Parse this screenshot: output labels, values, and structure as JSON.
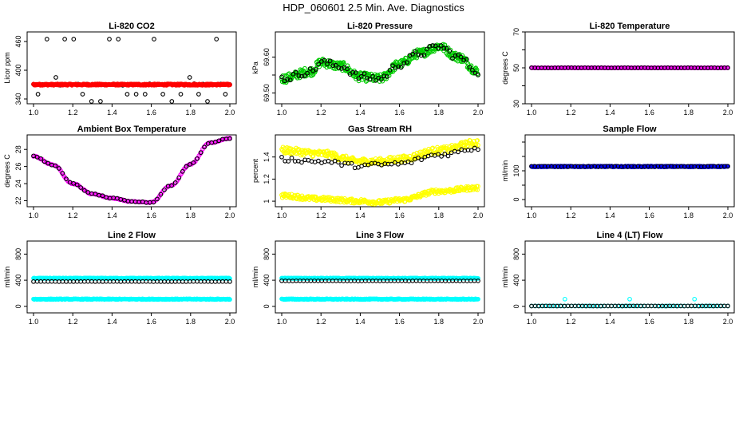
{
  "figure": {
    "title": "HDP_060601  2.5 Min. Ave. Diagnostics"
  },
  "chart_data": [
    {
      "type": "scatter",
      "title": "Li-820 CO2",
      "xlabel": "",
      "ylabel": "Licor ppm",
      "xlim": [
        1.0,
        2.0
      ],
      "ylim": [
        330,
        480
      ],
      "xticks": [
        "1.0",
        "1.2",
        "1.4",
        "1.6",
        "1.8",
        "2.0"
      ],
      "yticks": [
        340,
        400,
        460
      ],
      "series": [
        {
          "color": "#000000",
          "marker": "open-circle",
          "pattern": {
            "kind": "spikes",
            "base": 370,
            "n": 45,
            "noise": 2,
            "spike_values": [
              335,
              350,
              385,
              465
            ],
            "spike_every": 1
          }
        },
        {
          "color": "#ff0000",
          "marker": "open-circle",
          "pattern": {
            "kind": "band",
            "values_at": [
              [
                1.0,
                370
              ],
              [
                2.0,
                370
              ]
            ],
            "n": 400,
            "noise": 1.5
          }
        }
      ]
    },
    {
      "type": "scatter",
      "title": "Li-820 Pressure",
      "xlabel": "",
      "ylabel": "kPa",
      "xlim": [
        1.0,
        2.0
      ],
      "ylim": [
        69.47,
        69.67
      ],
      "xticks": [
        "1.0",
        "1.2",
        "1.4",
        "1.6",
        "1.8",
        "2.0"
      ],
      "yticks": [
        69.5,
        69.55,
        69.6
      ],
      "ytick_labels": [
        "69.50",
        "",
        "69.60"
      ],
      "series": [
        {
          "color": "#00cc00",
          "marker": "open-circle",
          "pattern": {
            "kind": "band",
            "values_at": [
              [
                1.0,
                69.54
              ],
              [
                1.15,
                69.56
              ],
              [
                1.2,
                69.585
              ],
              [
                1.3,
                69.575
              ],
              [
                1.4,
                69.545
              ],
              [
                1.5,
                69.54
              ],
              [
                1.6,
                69.58
              ],
              [
                1.7,
                69.61
              ],
              [
                1.8,
                69.63
              ],
              [
                1.9,
                69.6
              ],
              [
                2.0,
                69.56
              ]
            ],
            "n": 350,
            "noise": 0.012
          }
        },
        {
          "color": "#000000",
          "marker": "open-circle",
          "pattern": {
            "kind": "band",
            "values_at": [
              [
                1.0,
                69.54
              ],
              [
                1.15,
                69.56
              ],
              [
                1.2,
                69.585
              ],
              [
                1.3,
                69.575
              ],
              [
                1.4,
                69.545
              ],
              [
                1.5,
                69.54
              ],
              [
                1.6,
                69.58
              ],
              [
                1.7,
                69.61
              ],
              [
                1.8,
                69.63
              ],
              [
                1.9,
                69.6
              ],
              [
                2.0,
                69.56
              ]
            ],
            "n": 70,
            "noise": 0.01
          }
        }
      ]
    },
    {
      "type": "scatter",
      "title": "Li-820 Temperature",
      "xlabel": "",
      "ylabel": "degrees C",
      "xlim": [
        1.0,
        2.0
      ],
      "ylim": [
        30,
        70
      ],
      "xticks": [
        "1.0",
        "1.2",
        "1.4",
        "1.6",
        "1.8",
        "2.0"
      ],
      "yticks": [
        30,
        40,
        50,
        60,
        70
      ],
      "ytick_labels": [
        "30",
        "",
        "50",
        "",
        "70"
      ],
      "series": [
        {
          "color": "#ff00ff",
          "marker": "open-circle",
          "pattern": {
            "kind": "band",
            "values_at": [
              [
                1.0,
                50
              ],
              [
                2.0,
                50
              ]
            ],
            "n": 200,
            "noise": 0.05
          }
        },
        {
          "color": "#000000",
          "marker": "open-circle",
          "pattern": {
            "kind": "band",
            "values_at": [
              [
                1.0,
                50
              ],
              [
                2.0,
                50
              ]
            ],
            "n": 60,
            "noise": 0.05
          }
        }
      ]
    },
    {
      "type": "scatter",
      "title": "Ambient Box Temperature",
      "xlabel": "",
      "ylabel": "degrees C",
      "xlim": [
        1.0,
        2.0
      ],
      "ylim": [
        21.3,
        29.7
      ],
      "xticks": [
        "1.0",
        "1.2",
        "1.4",
        "1.6",
        "1.8",
        "2.0"
      ],
      "yticks": [
        22,
        24,
        26,
        28
      ],
      "series": [
        {
          "color": "#ff00ff",
          "marker": "open-circle",
          "pattern": {
            "kind": "band",
            "values_at": [
              [
                1.0,
                27.2
              ],
              [
                1.1,
                26.2
              ],
              [
                1.2,
                24.0
              ],
              [
                1.3,
                22.8
              ],
              [
                1.4,
                22.3
              ],
              [
                1.5,
                21.9
              ],
              [
                1.6,
                21.8
              ],
              [
                1.7,
                23.8
              ],
              [
                1.8,
                26.3
              ],
              [
                1.9,
                28.8
              ],
              [
                2.0,
                29.3
              ]
            ],
            "n": 160,
            "noise": 0.05
          }
        },
        {
          "color": "#000000",
          "marker": "open-circle",
          "pattern": {
            "kind": "band",
            "values_at": [
              [
                1.0,
                27.2
              ],
              [
                1.1,
                26.2
              ],
              [
                1.2,
                24.0
              ],
              [
                1.3,
                22.8
              ],
              [
                1.4,
                22.3
              ],
              [
                1.5,
                21.9
              ],
              [
                1.6,
                21.8
              ],
              [
                1.7,
                23.8
              ],
              [
                1.8,
                26.3
              ],
              [
                1.9,
                28.8
              ],
              [
                2.0,
                29.3
              ]
            ],
            "n": 55,
            "noise": 0.05
          }
        }
      ]
    },
    {
      "type": "scatter",
      "title": "Gas Stream RH",
      "xlabel": "",
      "ylabel": "percent",
      "xlim": [
        1.0,
        2.0
      ],
      "ylim": [
        0.95,
        1.6
      ],
      "xticks": [
        "1.0",
        "1.2",
        "1.4",
        "1.6",
        "1.8",
        "2.0"
      ],
      "yticks": [
        1.0,
        1.2,
        1.4
      ],
      "series": [
        {
          "color": "#ffff00",
          "marker": "open-circle",
          "pattern": {
            "kind": "band",
            "values_at": [
              [
                1.0,
                1.46
              ],
              [
                1.2,
                1.43
              ],
              [
                1.4,
                1.36
              ],
              [
                1.5,
                1.36
              ],
              [
                1.6,
                1.38
              ],
              [
                1.8,
                1.46
              ],
              [
                2.0,
                1.53
              ]
            ],
            "n": 300,
            "noise": 0.03
          }
        },
        {
          "color": "#ffff00",
          "marker": "open-circle",
          "pattern": {
            "kind": "band",
            "values_at": [
              [
                1.0,
                1.05
              ],
              [
                1.2,
                1.02
              ],
              [
                1.4,
                1.0
              ],
              [
                1.5,
                0.99
              ],
              [
                1.6,
                1.01
              ],
              [
                1.8,
                1.09
              ],
              [
                2.0,
                1.12
              ]
            ],
            "n": 300,
            "noise": 0.02
          }
        },
        {
          "color": "#000000",
          "marker": "open-circle",
          "pattern": {
            "kind": "band",
            "values_at": [
              [
                1.0,
                1.38
              ],
              [
                1.2,
                1.36
              ],
              [
                1.4,
                1.32
              ],
              [
                1.5,
                1.33
              ],
              [
                1.6,
                1.34
              ],
              [
                1.8,
                1.42
              ],
              [
                2.0,
                1.48
              ]
            ],
            "n": 60,
            "noise": 0.02
          }
        }
      ]
    },
    {
      "type": "scatter",
      "title": "Sample Flow",
      "xlabel": "",
      "ylabel": "ml/min",
      "xlim": [
        1.0,
        2.0
      ],
      "ylim": [
        -25,
        225
      ],
      "xticks": [
        "1.0",
        "1.2",
        "1.4",
        "1.6",
        "1.8",
        "2.0"
      ],
      "yticks": [
        0,
        50,
        100,
        150,
        200
      ],
      "ytick_labels": [
        "0",
        "",
        "100",
        "",
        ""
      ],
      "series": [
        {
          "color": "#0000ff",
          "marker": "open-circle",
          "pattern": {
            "kind": "band",
            "values_at": [
              [
                1.0,
                115
              ],
              [
                2.0,
                115
              ]
            ],
            "n": 300,
            "noise": 1.5
          }
        },
        {
          "color": "#000000",
          "marker": "open-circle",
          "pattern": {
            "kind": "band",
            "values_at": [
              [
                1.0,
                115
              ],
              [
                2.0,
                115
              ]
            ],
            "n": 60,
            "noise": 1
          }
        }
      ]
    },
    {
      "type": "scatter",
      "title": "Line 2 Flow",
      "xlabel": "",
      "ylabel": "ml/min",
      "xlim": [
        1.0,
        2.0
      ],
      "ylim": [
        -100,
        1000
      ],
      "xticks": [
        "1.0",
        "1.2",
        "1.4",
        "1.6",
        "1.8",
        "2.0"
      ],
      "yticks": [
        0,
        400,
        800
      ],
      "series": [
        {
          "color": "#00ffff",
          "marker": "open-circle",
          "pattern": {
            "kind": "band",
            "values_at": [
              [
                1.0,
                430
              ],
              [
                2.0,
                430
              ]
            ],
            "n": 300,
            "noise": 5
          }
        },
        {
          "color": "#00ffff",
          "marker": "open-circle",
          "pattern": {
            "kind": "band",
            "values_at": [
              [
                1.0,
                110
              ],
              [
                2.0,
                110
              ]
            ],
            "n": 300,
            "noise": 5
          }
        },
        {
          "color": "#000000",
          "marker": "open-circle",
          "pattern": {
            "kind": "band",
            "values_at": [
              [
                1.0,
                380
              ],
              [
                2.0,
                380
              ]
            ],
            "n": 55,
            "noise": 2
          }
        }
      ]
    },
    {
      "type": "scatter",
      "title": "Line 3 Flow",
      "xlabel": "",
      "ylabel": "ml/min",
      "xlim": [
        1.0,
        2.0
      ],
      "ylim": [
        -100,
        1000
      ],
      "xticks": [
        "1.0",
        "1.2",
        "1.4",
        "1.6",
        "1.8",
        "2.0"
      ],
      "yticks": [
        0,
        400,
        800
      ],
      "series": [
        {
          "color": "#00ffff",
          "marker": "open-circle",
          "pattern": {
            "kind": "band",
            "values_at": [
              [
                1.0,
                430
              ],
              [
                2.0,
                430
              ]
            ],
            "n": 300,
            "noise": 5
          }
        },
        {
          "color": "#00ffff",
          "marker": "open-circle",
          "pattern": {
            "kind": "band",
            "values_at": [
              [
                1.0,
                110
              ],
              [
                2.0,
                110
              ]
            ],
            "n": 300,
            "noise": 5
          }
        },
        {
          "color": "#000000",
          "marker": "open-circle",
          "pattern": {
            "kind": "band",
            "values_at": [
              [
                1.0,
                390
              ],
              [
                2.0,
                390
              ]
            ],
            "n": 55,
            "noise": 2
          }
        }
      ]
    },
    {
      "type": "scatter",
      "title": "Line 4 (LT) Flow",
      "xlabel": "",
      "ylabel": "ml/min",
      "xlim": [
        1.0,
        2.0
      ],
      "ylim": [
        -100,
        1000
      ],
      "xticks": [
        "1.0",
        "1.2",
        "1.4",
        "1.6",
        "1.8",
        "2.0"
      ],
      "yticks": [
        0,
        400,
        800
      ],
      "series": [
        {
          "color": "#00ffff",
          "marker": "open-circle",
          "pattern": {
            "kind": "band",
            "values_at": [
              [
                1.0,
                5
              ],
              [
                2.0,
                5
              ]
            ],
            "n": 60,
            "noise": 1
          },
          "extra_points": [
            [
              1.17,
              110
            ],
            [
              1.5,
              110
            ],
            [
              1.83,
              110
            ]
          ]
        },
        {
          "color": "#000000",
          "marker": "open-circle",
          "pattern": {
            "kind": "band",
            "values_at": [
              [
                1.0,
                5
              ],
              [
                2.0,
                5
              ]
            ],
            "n": 55,
            "noise": 1
          }
        }
      ]
    }
  ]
}
